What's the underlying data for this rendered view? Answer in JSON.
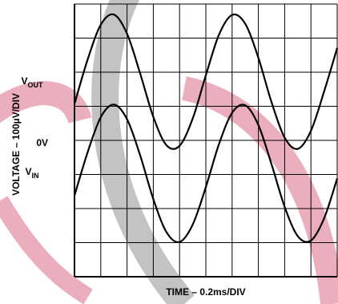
{
  "chart_data": {
    "type": "line",
    "x_label": "TIME – 0.2ms/DIV",
    "y_label": "VOLTAGE – 100µV/DIV",
    "zero_label": "0V",
    "xlim": [
      0,
      10
    ],
    "ylim": [
      0,
      8
    ],
    "xticks": [
      0,
      1,
      2,
      3,
      4,
      5,
      6,
      7,
      8,
      9,
      10
    ],
    "yticks": [
      0,
      1,
      2,
      3,
      4,
      5,
      6,
      7,
      8
    ],
    "grid": true,
    "x": [
      0,
      0.5,
      1,
      1.5,
      2,
      2.5,
      3,
      3.5,
      4,
      4.5,
      5,
      5.5,
      6,
      6.5,
      7,
      7.5,
      8,
      8.5,
      9,
      9.5,
      10
    ],
    "series": [
      {
        "name": "V",
        "subscript": "OUT",
        "color": "#000000",
        "values": [
          5.07,
          6.37,
          7.39,
          7.69,
          7.13,
          5.96,
          4.69,
          3.86,
          3.84,
          4.64,
          5.91,
          7.1,
          7.68,
          7.42,
          6.42,
          5.12,
          4.08,
          3.75,
          4.28,
          5.43,
          6.71
        ]
      },
      {
        "name": "V",
        "subscript": "IN",
        "color": "#000000",
        "values": [
          2.38,
          3.65,
          4.68,
          5.05,
          4.62,
          3.56,
          2.28,
          1.31,
          1.02,
          1.53,
          2.63,
          3.89,
          4.81,
          5.03,
          4.45,
          3.3,
          2.05,
          1.19,
          1.06,
          1.71,
          2.88
        ]
      }
    ]
  }
}
